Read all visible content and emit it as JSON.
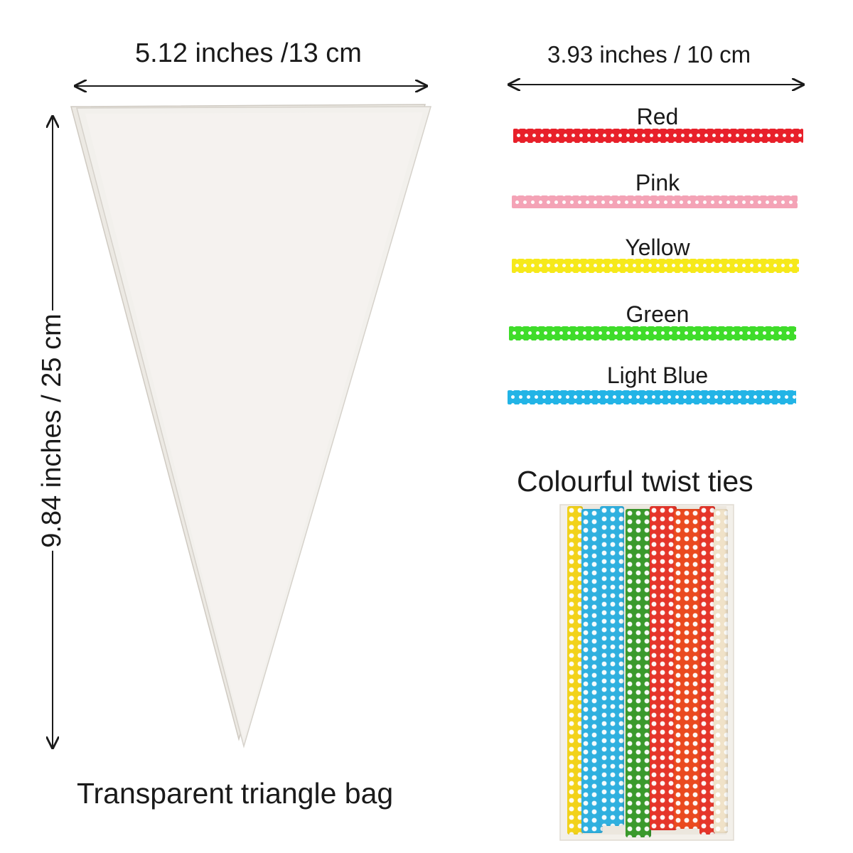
{
  "bag": {
    "width_label": "5.12 inches /13 cm",
    "height_label": "9.84 inches / 25 cm",
    "caption": "Transparent triangle bag"
  },
  "ties": {
    "length_label": "3.93 inches / 10 cm",
    "caption": "Colourful twist ties",
    "items": [
      {
        "name": "Red",
        "color": "#e8202a"
      },
      {
        "name": "Pink",
        "color": "#f4a3b6"
      },
      {
        "name": "Yellow",
        "color": "#f6e91a"
      },
      {
        "name": "Green",
        "color": "#3fdc2a"
      },
      {
        "name": "Light Blue",
        "color": "#22b4e6"
      }
    ]
  },
  "pack": {
    "strip_colors": [
      "#f2d21a",
      "#2fb0df",
      "#3a9a2c",
      "#e5352a",
      "#ea4a1f",
      "#f0e2c8"
    ]
  }
}
